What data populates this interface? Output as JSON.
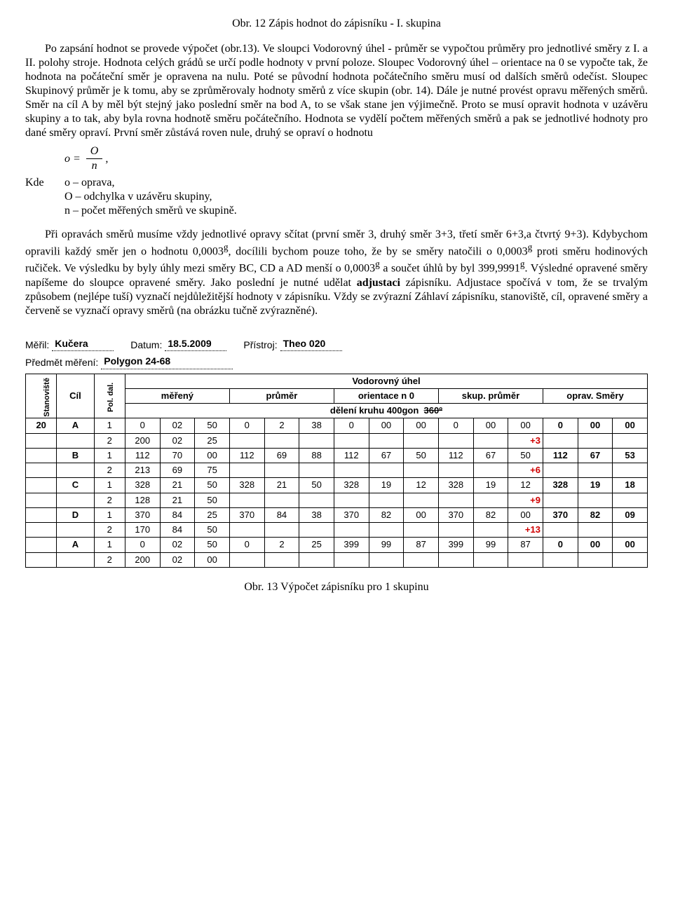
{
  "caption_top": "Obr. 12 Zápis hodnot do zápisníku - I. skupina",
  "para1": "Po zapsání hodnot se provede výpočet (obr.13). Ve sloupci Vodorovný úhel - průměr se vypočtou průměry pro jednotlivé směry z I. a II. polohy stroje. Hodnota celých grádů se určí podle hodnoty v první poloze. Sloupec Vodorovný úhel – orientace na 0 se vypočte tak, že hodnota na počáteční směr je opravena na nulu. Poté se původní hodnota počátečního směru musí od dalších směrů odečíst. Sloupec Skupinový průměr je k tomu, aby se zprůměrovaly hodnoty směrů z více skupin  (obr. 14). Dále je nutné provést opravu měřených směrů. Směr na cíl A by měl být stejný jako poslední směr na bod A, to se však stane jen výjimečně. Proto se musí  opravit  hodnota  v uzávěru  skupiny  a  to  tak,  aby  byla  rovna  hodnotě  směru počátečního. Hodnota se vydělí počtem měřených směrů a pak se jednotlivé hodnoty pro dané směry opraví. První směr zůstává roven nule, druhý se opraví o hodnotu",
  "formula": {
    "lhs": "o",
    "num": "O",
    "den": "n",
    "tail": ","
  },
  "defs_label": "Kde",
  "defs1": "o – oprava,",
  "defs2": "O – odchylka v uzávěru skupiny,",
  "defs3": "n – počet měřených směrů ve skupině.",
  "para2_a": "Při opravách směrů musíme vždy jednotlivé opravy sčítat (první směr 3, druhý směr 3+3, třetí směr 6+3,a čtvrtý 9+3). Kdybychom opravili každý směr jen o hodnotu 0,0003",
  "para2_b": ", docílili  bychom  pouze  toho,  že  by  se  směry  natočili  o  0,0003",
  "para2_c": "  proti  směru  hodinových ručiček. Ve výsledku by byly úhly mezi směry BC, CD a AD menší o 0,0003",
  "para2_d": " a součet úhlů by  byl  399,9991",
  "para2_e": ".  Výsledné  opravené  směry  napíšeme  do  sloupce  opravené  směry.  Jako poslední  je  nutné  udělat  ",
  "para2_bold": "adjustaci",
  "para2_f": "  zápisníku.  Adjustace  spočívá  v tom,  že  se  trvalým způsobem (nejlépe tuší) vyznačí nejdůležitější hodnoty v zápisníku. Vždy se zvýrazní Záhlaví zápisníku, stanoviště, cíl, opravené směry a červeně se vyznačí opravy směrů (na obrázku tučně zvýrazněné).",
  "sup_g": "g",
  "header": {
    "meril_label": "Měřil:",
    "meril_value": "Kučera",
    "datum_label": "Datum:",
    "datum_value": "18.5.2009",
    "pristroj_label": "Přístroj:",
    "pristroj_value": "Theo 020",
    "predmet_label": "Předmět měření:",
    "predmet_value": "Polygon 24-68"
  },
  "table": {
    "stanoviste": "Stanoviště",
    "cil": "Cíl",
    "pol_dal": "Pol. dal.",
    "vodorovny_uhel": "Vodorovný úhel",
    "mereny": "měřený",
    "prumer": "průměr",
    "orientace": "orientace n 0",
    "skup_prumer": "skup. průměr",
    "oprav_smery": "oprav. Směry",
    "deleni": "dělení kruhu ",
    "deleni_a": "400gon",
    "deleni_b": "360º",
    "corrections": [
      "+3",
      "+6",
      "+9",
      "+13"
    ],
    "rows": [
      {
        "stan": "20",
        "cil": "A",
        "pd": "1",
        "m": [
          "0",
          "02",
          "50"
        ],
        "p": [
          "0",
          "2",
          "38"
        ],
        "o0": [
          "0",
          "00",
          "00"
        ],
        "sp": [
          "0",
          "00",
          "00"
        ],
        "os": [
          "0",
          "00",
          "00"
        ],
        "boldline": true
      },
      {
        "stan": "",
        "cil": "",
        "pd": "2",
        "m": [
          "200",
          "02",
          "25"
        ],
        "p": [
          "",
          "",
          ""
        ],
        "o0": [
          "",
          "",
          ""
        ],
        "sp": [
          "",
          "",
          ""
        ],
        "os": [
          "",
          "",
          ""
        ],
        "corr": "+3"
      },
      {
        "stan": "",
        "cil": "B",
        "pd": "1",
        "m": [
          "112",
          "70",
          "00"
        ],
        "p": [
          "112",
          "69",
          "88"
        ],
        "o0": [
          "112",
          "67",
          "50"
        ],
        "sp": [
          "112",
          "67",
          "50"
        ],
        "os": [
          "112",
          "67",
          "53"
        ],
        "boldline": true
      },
      {
        "stan": "",
        "cil": "",
        "pd": "2",
        "m": [
          "213",
          "69",
          "75"
        ],
        "p": [
          "",
          "",
          ""
        ],
        "o0": [
          "",
          "",
          ""
        ],
        "sp": [
          "",
          "",
          ""
        ],
        "os": [
          "",
          "",
          ""
        ],
        "corr": "+6"
      },
      {
        "stan": "",
        "cil": "C",
        "pd": "1",
        "m": [
          "328",
          "21",
          "50"
        ],
        "p": [
          "328",
          "21",
          "50"
        ],
        "o0": [
          "328",
          "19",
          "12"
        ],
        "sp": [
          "328",
          "19",
          "12"
        ],
        "os": [
          "328",
          "19",
          "18"
        ],
        "boldline": true
      },
      {
        "stan": "",
        "cil": "",
        "pd": "2",
        "m": [
          "128",
          "21",
          "50"
        ],
        "p": [
          "",
          "",
          ""
        ],
        "o0": [
          "",
          "",
          ""
        ],
        "sp": [
          "",
          "",
          ""
        ],
        "os": [
          "",
          "",
          ""
        ],
        "corr": "+9"
      },
      {
        "stan": "",
        "cil": "D",
        "pd": "1",
        "m": [
          "370",
          "84",
          "25"
        ],
        "p": [
          "370",
          "84",
          "38"
        ],
        "o0": [
          "370",
          "82",
          "00"
        ],
        "sp": [
          "370",
          "82",
          "00"
        ],
        "os": [
          "370",
          "82",
          "09"
        ],
        "boldline": true
      },
      {
        "stan": "",
        "cil": "",
        "pd": "2",
        "m": [
          "170",
          "84",
          "50"
        ],
        "p": [
          "",
          "",
          ""
        ],
        "o0": [
          "",
          "",
          ""
        ],
        "sp": [
          "",
          "",
          ""
        ],
        "os": [
          "",
          "",
          ""
        ],
        "corr": "+13"
      },
      {
        "stan": "",
        "cil": "A",
        "pd": "1",
        "m": [
          "0",
          "02",
          "50"
        ],
        "p": [
          "0",
          "2",
          "25"
        ],
        "o0": [
          "399",
          "99",
          "87"
        ],
        "sp": [
          "399",
          "99",
          "87"
        ],
        "os": [
          "0",
          "00",
          "00"
        ],
        "boldline": true
      },
      {
        "stan": "",
        "cil": "",
        "pd": "2",
        "m": [
          "200",
          "02",
          "00"
        ],
        "p": [
          "",
          "",
          ""
        ],
        "o0": [
          "",
          "",
          ""
        ],
        "sp": [
          "",
          "",
          ""
        ],
        "os": [
          "",
          "",
          ""
        ]
      }
    ],
    "widths": {
      "stan": "5%",
      "cil": "6%",
      "pd": "5%",
      "group": "16.8%"
    }
  },
  "caption_bottom": "Obr. 13 Výpočet zápisníku pro 1 skupinu"
}
